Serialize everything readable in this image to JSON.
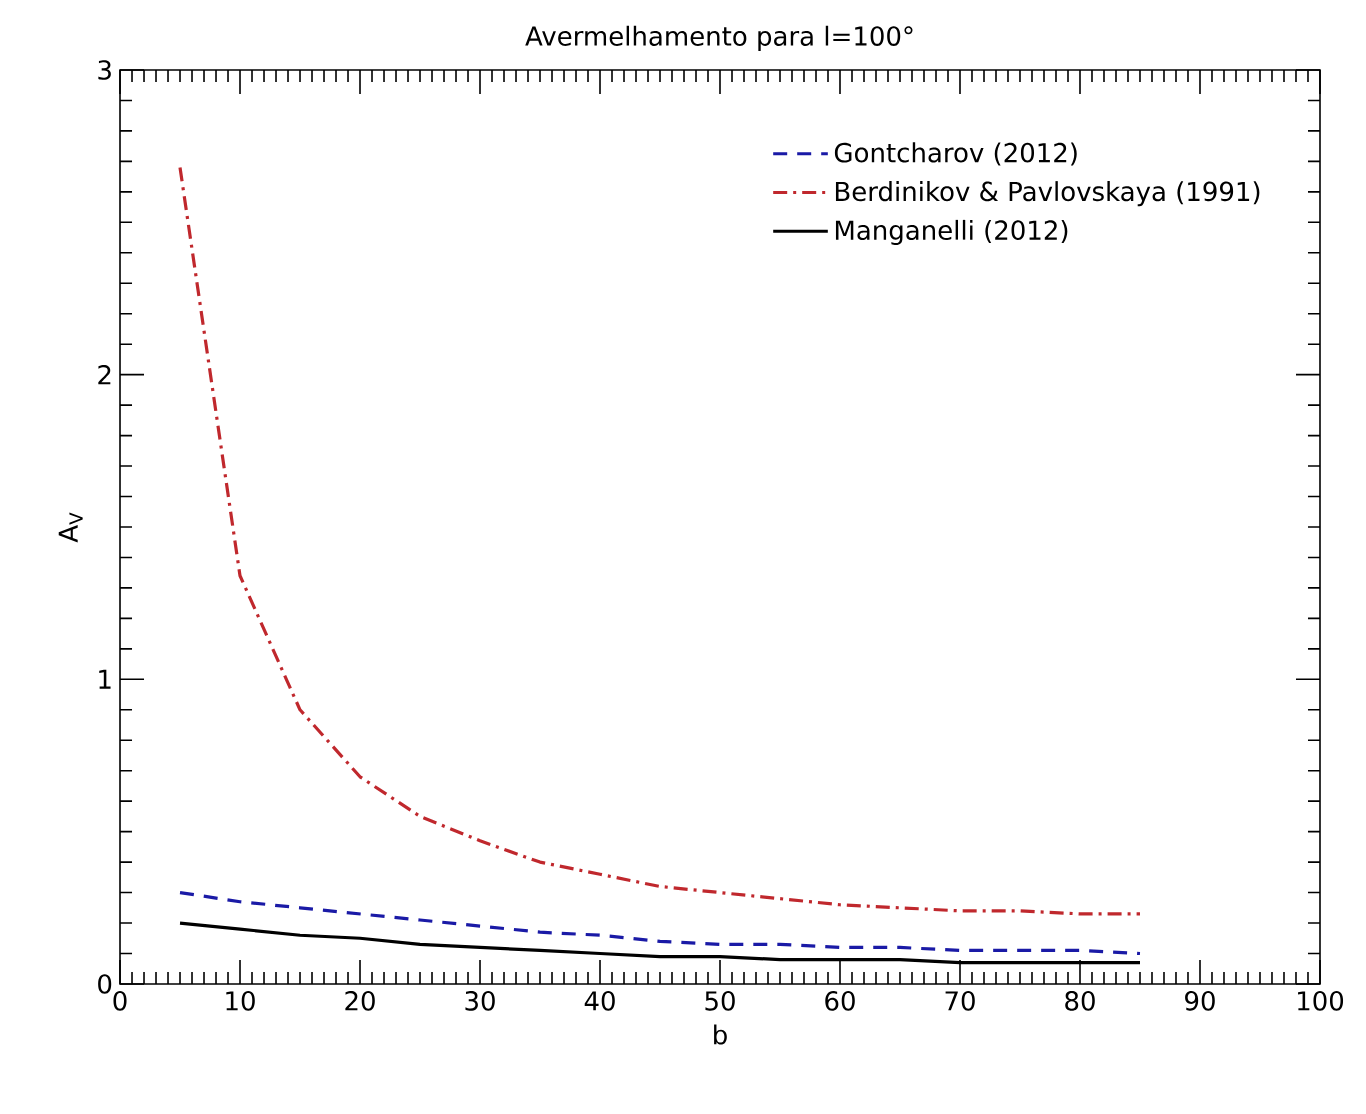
{
  "chart_data": {
    "type": "line",
    "title": "Avermelhamento para l=100°",
    "xlabel": "b",
    "ylabel": "A$_{V}$",
    "x": [
      5,
      10,
      15,
      20,
      25,
      30,
      35,
      40,
      45,
      50,
      55,
      60,
      65,
      70,
      75,
      80,
      85
    ],
    "xlim": [
      0,
      100
    ],
    "xticks": [
      0,
      10,
      20,
      30,
      40,
      50,
      60,
      70,
      80,
      90,
      100
    ],
    "ylim": [
      0,
      3
    ],
    "yticks": [
      0,
      1,
      2,
      3
    ],
    "grid": false,
    "legend": "top right",
    "marker": "none",
    "series": [
      {
        "name": "Gontcharov (2012)",
        "color": "#1a1aa6",
        "line_style": "dashed",
        "values": [
          0.3,
          0.27,
          0.25,
          0.23,
          0.21,
          0.19,
          0.17,
          0.16,
          0.14,
          0.13,
          0.13,
          0.12,
          0.12,
          0.11,
          0.11,
          0.11,
          0.1
        ]
      },
      {
        "name": "Berdinikov & Pavlovskaya (1991)",
        "color": "#c0282d",
        "line_style": "dashdot",
        "values": [
          2.68,
          1.34,
          0.9,
          0.68,
          0.55,
          0.47,
          0.4,
          0.36,
          0.32,
          0.3,
          0.28,
          0.26,
          0.25,
          0.24,
          0.24,
          0.23,
          0.23
        ]
      },
      {
        "name": "Manganelli (2012)",
        "color": "#000000",
        "line_style": "solid",
        "values": [
          0.2,
          0.18,
          0.16,
          0.15,
          0.13,
          0.12,
          0.11,
          0.1,
          0.09,
          0.09,
          0.08,
          0.08,
          0.08,
          0.07,
          0.07,
          0.07,
          0.07
        ]
      }
    ]
  }
}
